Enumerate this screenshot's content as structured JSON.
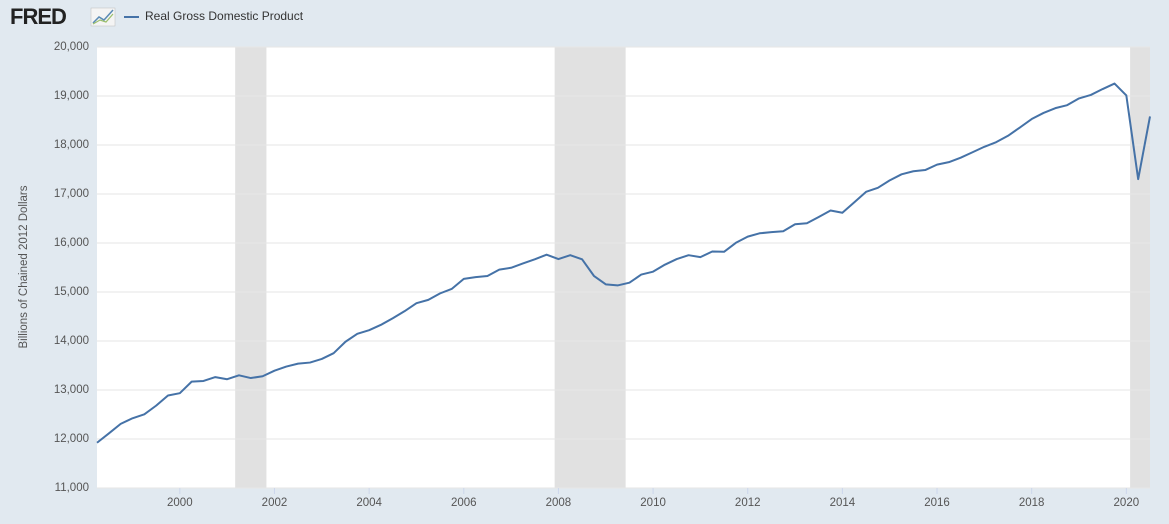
{
  "logo": "FRED",
  "chart_data": {
    "type": "line",
    "ylabel": "Billions of Chained 2012 Dollars",
    "x": [
      1998.25,
      1998.5,
      1998.75,
      1999,
      1999.25,
      1999.5,
      1999.75,
      2000,
      2000.25,
      2000.5,
      2000.75,
      2001,
      2001.25,
      2001.5,
      2001.75,
      2002,
      2002.25,
      2002.5,
      2002.75,
      2003,
      2003.25,
      2003.5,
      2003.75,
      2004,
      2004.25,
      2004.5,
      2004.75,
      2005,
      2005.25,
      2005.5,
      2005.75,
      2006,
      2006.25,
      2006.5,
      2006.75,
      2007,
      2007.25,
      2007.5,
      2007.75,
      2008,
      2008.25,
      2008.5,
      2008.75,
      2009,
      2009.25,
      2009.5,
      2009.75,
      2010,
      2010.25,
      2010.5,
      2010.75,
      2011,
      2011.25,
      2011.5,
      2011.75,
      2012,
      2012.25,
      2012.5,
      2012.75,
      2013,
      2013.25,
      2013.5,
      2013.75,
      2014,
      2014.25,
      2014.5,
      2014.75,
      2015,
      2015.25,
      2015.5,
      2015.75,
      2016,
      2016.25,
      2016.5,
      2016.75,
      2017,
      2017.25,
      2017.5,
      2017.75,
      2018,
      2018.25,
      2018.5,
      2018.75,
      2019,
      2019.25,
      2019.5,
      2019.75,
      2020,
      2020.25,
      2020.5
    ],
    "series": [
      {
        "name": "Real Gross Domestic Product",
        "color": "#4572a7",
        "values": [
          11923,
          12113,
          12309,
          12423,
          12504,
          12681,
          12888,
          12935,
          13171,
          13184,
          13263,
          13220,
          13300,
          13244,
          13281,
          13394,
          13478,
          13538,
          13560,
          13634,
          13751,
          13985,
          14146,
          14221,
          14330,
          14465,
          14609,
          14771,
          14839,
          14972,
          15066,
          15268,
          15303,
          15327,
          15457,
          15494,
          15582,
          15667,
          15762,
          15672,
          15752,
          15667,
          15329,
          15156,
          15134,
          15190,
          15356,
          15415,
          15558,
          15672,
          15751,
          15712,
          15826,
          15821,
          16004,
          16130,
          16198,
          16221,
          16239,
          16383,
          16403,
          16531,
          16664,
          16617,
          16828,
          17044,
          17126,
          17279,
          17402,
          17464,
          17489,
          17600,
          17650,
          17741,
          17852,
          17964,
          18058,
          18188,
          18357,
          18530,
          18654,
          18752,
          18813,
          18951,
          19022,
          19142,
          19254,
          19011,
          17303,
          18584
        ]
      }
    ],
    "recessions": [
      [
        2001.17,
        2001.83
      ],
      [
        2007.92,
        2009.42
      ],
      [
        2020.08,
        2020.5
      ]
    ],
    "xlim": [
      1998.25,
      2020.5
    ],
    "xticks": [
      2000,
      2002,
      2004,
      2006,
      2008,
      2010,
      2012,
      2014,
      2016,
      2018,
      2020
    ],
    "ylim": [
      11000,
      20000
    ],
    "yticks": [
      {
        "value": 11000,
        "label": "11,000"
      },
      {
        "value": 12000,
        "label": "12,000"
      },
      {
        "value": 13000,
        "label": "13,000"
      },
      {
        "value": 14000,
        "label": "14,000"
      },
      {
        "value": 15000,
        "label": "15,000"
      },
      {
        "value": 16000,
        "label": "16,000"
      },
      {
        "value": 17000,
        "label": "17,000"
      },
      {
        "value": 18000,
        "label": "18,000"
      },
      {
        "value": 19000,
        "label": "19,000"
      },
      {
        "value": 20000,
        "label": "20,000"
      }
    ],
    "grid": true
  }
}
